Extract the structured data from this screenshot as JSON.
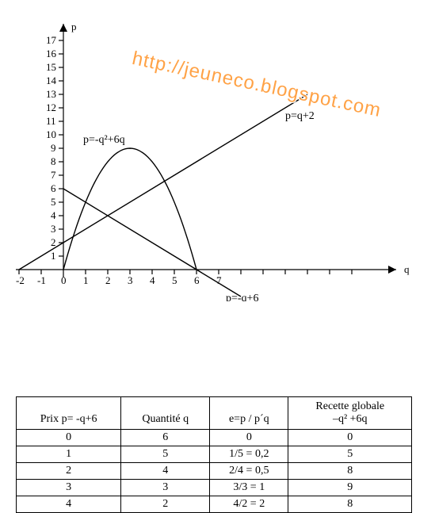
{
  "watermark": {
    "text": "http://jeuneco.blogspot.com"
  },
  "chart": {
    "type": "line+parabola",
    "background": "#ffffff",
    "x_axis": {
      "label": "q",
      "min": -2,
      "max": 13,
      "ticks": [
        -2,
        -1,
        0,
        1,
        2,
        3,
        4,
        5,
        6,
        7,
        8,
        9,
        10,
        11,
        12,
        13
      ]
    },
    "y_axis": {
      "label": "p",
      "min": 0,
      "max": 17,
      "ticks": [
        1,
        2,
        3,
        4,
        5,
        6,
        7,
        8,
        9,
        10,
        11,
        12,
        13,
        14,
        15,
        16,
        17
      ]
    },
    "curves": {
      "parabola": {
        "formula": "p=-q²+6q",
        "label": "p=-q²+6q",
        "color": "#000000",
        "q_range": [
          0,
          6
        ],
        "vertex": [
          3,
          9
        ]
      },
      "line_up": {
        "formula": "p=q+2",
        "label": "p=q+2",
        "color": "#000000",
        "points": [
          [
            -2,
            0
          ],
          [
            13,
            15
          ]
        ]
      },
      "line_down": {
        "formula": "p=-q+6",
        "label": "p=-q+6",
        "color": "#000000",
        "points": [
          [
            0,
            6
          ],
          [
            8,
            -2
          ]
        ]
      }
    },
    "label_positions": {
      "parabola": "above-left-of-vertex",
      "line_up": "upper-right",
      "line_down": "lower-right"
    }
  },
  "table": {
    "columns": [
      {
        "header": "Prix p= -q+6"
      },
      {
        "header": "Quantité q"
      },
      {
        "header": "e=p / p´q"
      },
      {
        "header_line1": "Recette globale",
        "header_line2": "–q² +6q"
      }
    ],
    "rows": [
      [
        "0",
        "6",
        "0",
        "0"
      ],
      [
        "1",
        "5",
        "1/5 = 0,2",
        "5"
      ],
      [
        "2",
        "4",
        "2/4 = 0,5",
        "8"
      ],
      [
        "3",
        "3",
        "3/3 = 1",
        "9"
      ],
      [
        "4",
        "2",
        "4/2 = 2",
        "8"
      ]
    ]
  }
}
